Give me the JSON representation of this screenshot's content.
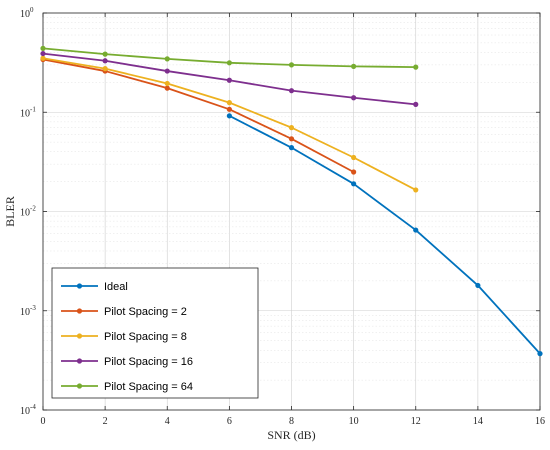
{
  "chart_data": {
    "type": "line",
    "xlabel": "SNR (dB)",
    "ylabel": "BLER",
    "xlim": [
      0,
      16
    ],
    "ylim": [
      0.0001,
      1
    ],
    "yscale": "log",
    "x_ticks": [
      "0",
      "2",
      "4",
      "6",
      "8",
      "10",
      "12",
      "14",
      "16"
    ],
    "y_ticks": [
      {
        "value": 1,
        "base": "10",
        "exp": "0"
      },
      {
        "value": 0.1,
        "base": "10",
        "exp": "-1"
      },
      {
        "value": 0.01,
        "base": "10",
        "exp": "-2"
      },
      {
        "value": 0.001,
        "base": "10",
        "exp": "-3"
      },
      {
        "value": 0.0001,
        "base": "10",
        "exp": "-4"
      }
    ],
    "grid": true,
    "legend_position": "bottom-left",
    "series": [
      {
        "name": "Ideal",
        "color": "#0072BD",
        "x": [
          6,
          8,
          10,
          12,
          14,
          16
        ],
        "y": [
          0.092,
          0.044,
          0.019,
          0.0065,
          0.0018,
          0.00037
        ]
      },
      {
        "name": "Pilot Spacing = 2",
        "color": "#D95319",
        "x": [
          0,
          2,
          4,
          6,
          8,
          10
        ],
        "y": [
          0.34,
          0.26,
          0.175,
          0.107,
          0.054,
          0.025
        ]
      },
      {
        "name": "Pilot Spacing = 8",
        "color": "#EDB120",
        "x": [
          0,
          2,
          4,
          6,
          8,
          10,
          12
        ],
        "y": [
          0.35,
          0.275,
          0.195,
          0.125,
          0.07,
          0.035,
          0.0165
        ]
      },
      {
        "name": "Pilot Spacing = 16",
        "color": "#7E2F8E",
        "x": [
          0,
          2,
          4,
          6,
          8,
          10,
          12
        ],
        "y": [
          0.39,
          0.33,
          0.26,
          0.21,
          0.165,
          0.14,
          0.12
        ]
      },
      {
        "name": "Pilot Spacing = 64",
        "color": "#77AC30",
        "x": [
          0,
          2,
          4,
          6,
          8,
          10,
          12
        ],
        "y": [
          0.44,
          0.385,
          0.345,
          0.315,
          0.3,
          0.29,
          0.285
        ]
      }
    ]
  }
}
